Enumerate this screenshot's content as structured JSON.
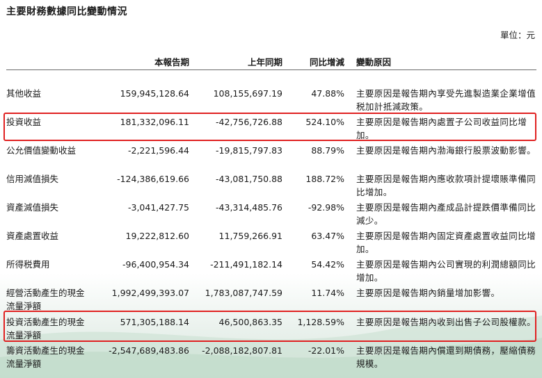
{
  "title": "主要財務數據同比變動情況",
  "unit": "單位：元",
  "headers": {
    "current": "本報告期",
    "previous": "上年同期",
    "change": "同比增減",
    "reason": "變動原因"
  },
  "highlight_color": "#e02020",
  "rows": [
    {
      "name": "其他收益",
      "current": "159,945,128.64",
      "previous": "108,155,697.19",
      "change": "47.88%",
      "reason": "主要原因是報告期內享受先進製造業企業增值税加計抵減政策。"
    },
    {
      "name": "投資收益",
      "current": "181,332,096.11",
      "previous": "-42,756,726.88",
      "change": "524.10%",
      "reason": "主要原因是報告期內處置子公司收益同比增加。"
    },
    {
      "name": "公允價值變動收益",
      "current": "-2,221,596.44",
      "previous": "-19,815,797.83",
      "change": "88.79%",
      "reason": "主要原因是報告期內渤海銀行股票波動影響。"
    },
    {
      "name": "信用減值損失",
      "current": "-124,386,619.66",
      "previous": "-43,081,750.88",
      "change": "188.72%",
      "reason": "主要原因是報告期內應收款項計提壞賬準備同比增加。"
    },
    {
      "name": "資產減值損失",
      "current": "-3,041,427.75",
      "previous": "-43,314,485.76",
      "change": "-92.98%",
      "reason": "主要原因是報告期內產成品計提跌價準備同比減少。"
    },
    {
      "name": "資產處置收益",
      "current": "19,222,812.60",
      "previous": "11,759,266.91",
      "change": "63.47%",
      "reason": "主要原因是報告期內固定資產處置收益同比增加。"
    },
    {
      "name": "所得税費用",
      "current": "-96,400,954.34",
      "previous": "-211,491,182.14",
      "change": "54.42%",
      "reason": "主要原因是報告期內公司實現的利潤總額同比增加。"
    },
    {
      "name": "經營活動產生的現金流量淨額",
      "current": "1,992,499,393.07",
      "previous": "1,783,087,747.59",
      "change": "11.74%",
      "reason": "主要原因是報告期內銷量增加影響。"
    },
    {
      "name": "投資活動產生的現金流量淨額",
      "current": "571,305,188.14",
      "previous": "46,500,863.35",
      "change": "1,128.59%",
      "reason": "主要原因是報告期內收到出售子公司股權款。"
    },
    {
      "name": "籌資活動產生的現金流量淨額",
      "current": "-2,547,689,483.86",
      "previous": "-2,088,182,807.81",
      "change": "-22.01%",
      "reason": "主要原因是報告期內償還到期債務，壓縮債務規模。"
    }
  ]
}
